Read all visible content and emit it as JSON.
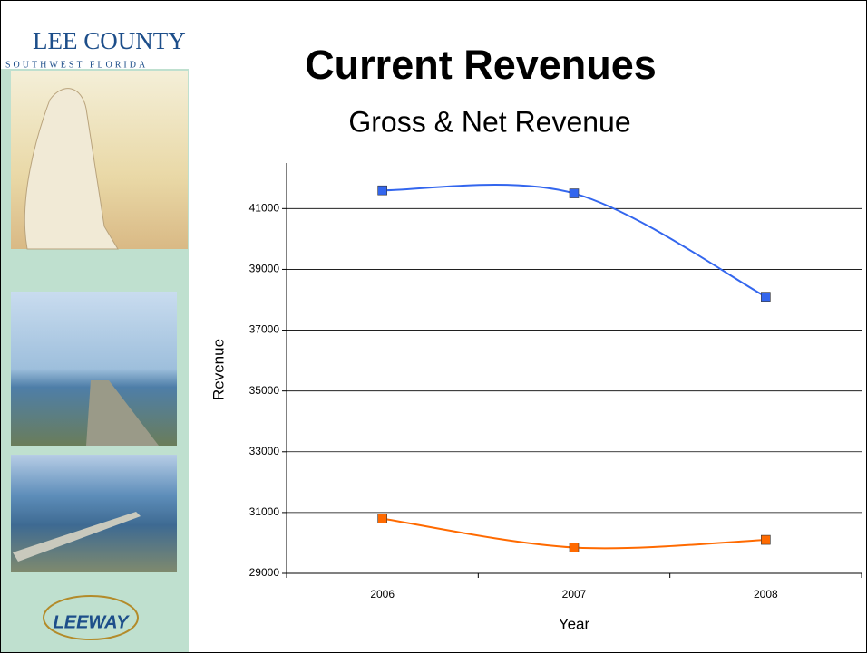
{
  "sidebar": {
    "brand": "LEE COUNTY",
    "region": "SOUTHWEST FLORIDA",
    "logo": "LEEWAY"
  },
  "chart_data": {
    "type": "line",
    "title": "Current Revenues",
    "subtitle": "Gross & Net Revenue",
    "x_label": "Year",
    "y_label": "Revenue",
    "categories": [
      "2006",
      "2007",
      "2008"
    ],
    "series": [
      {
        "color": "#3366ee",
        "values": [
          41600,
          41500,
          38100
        ]
      },
      {
        "color": "#ff6a00",
        "values": [
          30800,
          29850,
          30100
        ]
      }
    ],
    "ylim": [
      29000,
      42500
    ],
    "yticks": [
      29000,
      31000,
      33000,
      35000,
      37000,
      39000,
      41000
    ],
    "grid": true
  }
}
